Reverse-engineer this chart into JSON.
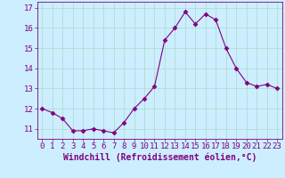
{
  "x": [
    0,
    1,
    2,
    3,
    4,
    5,
    6,
    7,
    8,
    9,
    10,
    11,
    12,
    13,
    14,
    15,
    16,
    17,
    18,
    19,
    20,
    21,
    22,
    23
  ],
  "y": [
    12.0,
    11.8,
    11.5,
    10.9,
    10.9,
    11.0,
    10.9,
    10.8,
    11.3,
    12.0,
    12.5,
    13.1,
    15.4,
    16.0,
    16.8,
    16.2,
    16.7,
    16.4,
    15.0,
    14.0,
    13.3,
    13.1,
    13.2,
    13.0
  ],
  "line_color": "#800080",
  "marker": "D",
  "marker_size": 2.5,
  "bg_color": "#cceeff",
  "grid_color": "#aaddcc",
  "xlabel": "Windchill (Refroidissement éolien,°C)",
  "xlabel_color": "#800080",
  "tick_color": "#800080",
  "ylim": [
    10.5,
    17.3
  ],
  "yticks": [
    11,
    12,
    13,
    14,
    15,
    16,
    17
  ],
  "xticks": [
    0,
    1,
    2,
    3,
    4,
    5,
    6,
    7,
    8,
    9,
    10,
    11,
    12,
    13,
    14,
    15,
    16,
    17,
    18,
    19,
    20,
    21,
    22,
    23
  ],
  "xlabel_fontsize": 7.0,
  "tick_fontsize": 6.5
}
